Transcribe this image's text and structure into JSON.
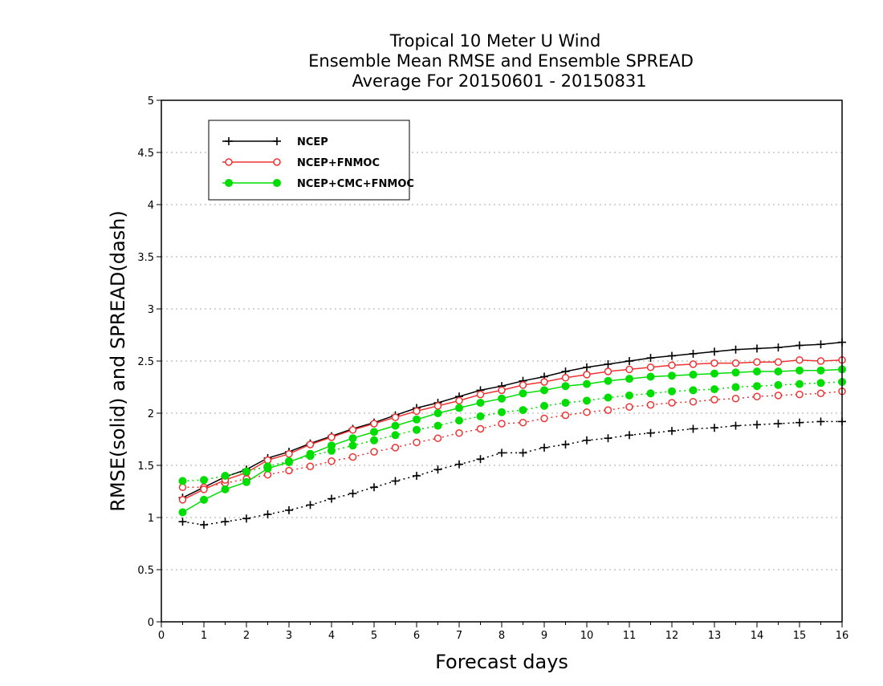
{
  "chart_data": {
    "type": "line",
    "title_lines": [
      "Tropical 10 Meter U Wind",
      "Ensemble Mean RMSE and Ensemble SPREAD",
      "Average For 20150601 - 20150831"
    ],
    "xlabel": "Forecast days",
    "ylabel": "RMSE(solid) and SPREAD(dash)",
    "xlim": [
      0,
      16
    ],
    "ylim": [
      0,
      5
    ],
    "x_ticks": [
      "0",
      "1",
      "2",
      "3",
      "4",
      "5",
      "6",
      "7",
      "8",
      "9",
      "10",
      "11",
      "12",
      "13",
      "14",
      "15",
      "16"
    ],
    "y_ticks": [
      "0",
      "0.5",
      "1",
      "1.5",
      "2",
      "2.5",
      "3",
      "3.5",
      "4",
      "4.5",
      "5"
    ],
    "y_grid": true,
    "legend_position": "top-left",
    "x": [
      0.5,
      1,
      1.5,
      2,
      2.5,
      3,
      3.5,
      4,
      4.5,
      5,
      5.5,
      6,
      6.5,
      7,
      7.5,
      8,
      8.5,
      9,
      9.5,
      10,
      10.5,
      11,
      11.5,
      12,
      12.5,
      13,
      13.5,
      14,
      14.5,
      15,
      15.5,
      16
    ],
    "series": [
      {
        "name": "NCEP",
        "color": "#000000",
        "marker": "plus",
        "rmse": [
          1.19,
          1.29,
          1.39,
          1.46,
          1.57,
          1.63,
          1.71,
          1.78,
          1.85,
          1.91,
          1.98,
          2.05,
          2.1,
          2.16,
          2.22,
          2.26,
          2.31,
          2.35,
          2.4,
          2.44,
          2.47,
          2.5,
          2.53,
          2.55,
          2.57,
          2.59,
          2.61,
          2.62,
          2.63,
          2.65,
          2.66,
          2.68
        ],
        "spread": [
          0.96,
          0.93,
          0.96,
          0.99,
          1.03,
          1.07,
          1.12,
          1.18,
          1.23,
          1.29,
          1.35,
          1.4,
          1.46,
          1.51,
          1.56,
          1.62,
          1.62,
          1.67,
          1.7,
          1.74,
          1.76,
          1.79,
          1.81,
          1.83,
          1.85,
          1.86,
          1.88,
          1.89,
          1.9,
          1.91,
          1.92,
          1.92
        ]
      },
      {
        "name": "NCEP+FNMOC",
        "color": "#ee3333",
        "marker": "open-circle",
        "rmse": [
          1.17,
          1.27,
          1.36,
          1.43,
          1.55,
          1.61,
          1.7,
          1.77,
          1.84,
          1.9,
          1.96,
          2.02,
          2.07,
          2.12,
          2.18,
          2.22,
          2.27,
          2.3,
          2.34,
          2.37,
          2.4,
          2.42,
          2.44,
          2.46,
          2.47,
          2.48,
          2.48,
          2.49,
          2.49,
          2.51,
          2.5,
          2.51
        ],
        "spread": [
          1.29,
          1.29,
          1.33,
          1.37,
          1.41,
          1.45,
          1.49,
          1.54,
          1.58,
          1.63,
          1.67,
          1.72,
          1.76,
          1.81,
          1.85,
          1.9,
          1.91,
          1.95,
          1.98,
          2.01,
          2.03,
          2.06,
          2.08,
          2.1,
          2.11,
          2.13,
          2.14,
          2.16,
          2.17,
          2.18,
          2.19,
          2.21
        ]
      },
      {
        "name": "NCEP+CMC+FNMOC",
        "color": "#00dd00",
        "marker": "filled-circle",
        "rmse": [
          1.05,
          1.17,
          1.27,
          1.34,
          1.47,
          1.53,
          1.61,
          1.69,
          1.76,
          1.82,
          1.88,
          1.94,
          2.0,
          2.05,
          2.1,
          2.14,
          2.19,
          2.22,
          2.26,
          2.28,
          2.31,
          2.33,
          2.35,
          2.36,
          2.37,
          2.38,
          2.39,
          2.4,
          2.4,
          2.41,
          2.41,
          2.42
        ],
        "spread": [
          1.35,
          1.36,
          1.4,
          1.44,
          1.49,
          1.54,
          1.59,
          1.64,
          1.69,
          1.74,
          1.79,
          1.84,
          1.88,
          1.93,
          1.97,
          2.01,
          2.03,
          2.07,
          2.1,
          2.12,
          2.15,
          2.17,
          2.19,
          2.21,
          2.22,
          2.23,
          2.25,
          2.26,
          2.27,
          2.28,
          2.29,
          2.3
        ]
      }
    ]
  }
}
